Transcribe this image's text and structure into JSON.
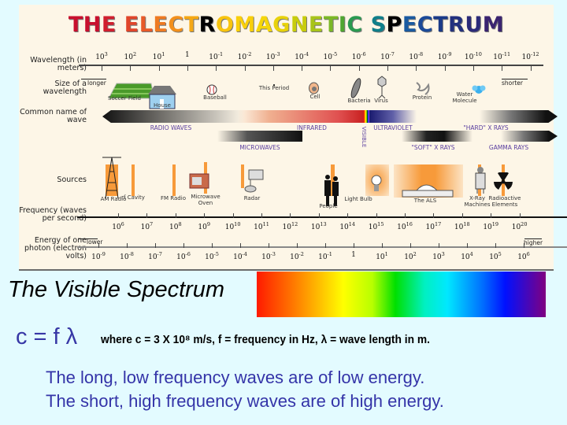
{
  "title": {
    "text": "THE ELECTROMAGNETIC SPECTRUM",
    "letter_colors": [
      "#c8102e",
      "#c8102e",
      "#d01f2e",
      " ",
      "#e0452a",
      "#e85a28",
      "#ee7a22",
      "#f2901c",
      "#f5a814",
      " ",
      "#f8c40e",
      "#f9cf0a",
      "#f5d60a",
      "#e8d20a",
      "#c8cc0c",
      "#a8c41a",
      "#7cb826",
      "#4fa630",
      "#2a9a50",
      "#138a70",
      "#0f7f8a",
      " ",
      "#1a5aa0",
      "#1b4a98",
      "#1a3a88",
      "#22307e",
      "#2b2a78",
      "#3a2470",
      "#48206c",
      "#561a66"
    ]
  },
  "labels": {
    "wavelength": "Wavelength (in meters)",
    "size": "Size of a wavelength",
    "common": "Common name of wave",
    "sources": "Sources",
    "frequency": "Frequency (waves per second)",
    "energy": "Energy of one photon (electron volts)",
    "longer": "longer",
    "shorter": "shorter",
    "lower": "lower",
    "higher": "higher"
  },
  "wavelength_ticks": [
    [
      "10",
      "3"
    ],
    [
      "10",
      "2"
    ],
    [
      "10",
      "1"
    ],
    [
      "1",
      ""
    ],
    [
      "10",
      "-1"
    ],
    [
      "10",
      "-2"
    ],
    [
      "10",
      "-3"
    ],
    [
      "10",
      "-4"
    ],
    [
      "10",
      "-5"
    ],
    [
      "10",
      "-6"
    ],
    [
      "10",
      "-7"
    ],
    [
      "10",
      "-8"
    ],
    [
      "10",
      "-9"
    ],
    [
      "10",
      "-10"
    ],
    [
      "10",
      "-11"
    ],
    [
      "10",
      "-12"
    ]
  ],
  "frequency_ticks": [
    [
      "10",
      "6"
    ],
    [
      "10",
      "7"
    ],
    [
      "10",
      "8"
    ],
    [
      "10",
      "9"
    ],
    [
      "10",
      "10"
    ],
    [
      "10",
      "11"
    ],
    [
      "10",
      "12"
    ],
    [
      "10",
      "13"
    ],
    [
      "10",
      "14"
    ],
    [
      "10",
      "15"
    ],
    [
      "10",
      "16"
    ],
    [
      "10",
      "17"
    ],
    [
      "10",
      "18"
    ],
    [
      "10",
      "19"
    ],
    [
      "10",
      "20"
    ]
  ],
  "energy_ticks": [
    [
      "10",
      "-9"
    ],
    [
      "10",
      "-8"
    ],
    [
      "10",
      "-7"
    ],
    [
      "10",
      "-6"
    ],
    [
      "10",
      "-5"
    ],
    [
      "10",
      "-4"
    ],
    [
      "10",
      "-3"
    ],
    [
      "10",
      "-2"
    ],
    [
      "10",
      "-1"
    ],
    [
      "1",
      ""
    ],
    [
      "10",
      "1"
    ],
    [
      "10",
      "2"
    ],
    [
      "10",
      "3"
    ],
    [
      "10",
      "4"
    ],
    [
      "10",
      "5"
    ],
    [
      "10",
      "6"
    ]
  ],
  "size_items": [
    "Soccer Field",
    "House",
    "Baseball",
    "This Period",
    "Cell",
    "Bacteria",
    "Virus",
    "Protein",
    "Water Molecule"
  ],
  "wave_names": {
    "radio": "RADIO WAVES",
    "microwaves": "MICROWAVES",
    "infrared": "INFRARED",
    "visible": "VISIBLE",
    "ultraviolet": "ULTRAVIOLET",
    "soft_xrays": "\"SOFT\" X RAYS",
    "hard_xrays": "\"HARD\" X RAYS",
    "gamma": "GAMMA RAYS"
  },
  "sources": [
    "AM Radio",
    "rf Cavity",
    "FM Radio",
    "Microwave Oven",
    "Radar",
    "People",
    "Light Bulb",
    "The ALS",
    "X-Ray Machines",
    "Radioactive Elements"
  ],
  "visible_title": "The Visible Spectrum",
  "formula": "c = f λ",
  "formula_note": "where c = 3 X 10⁸ m/s, f = frequency in Hz, λ = wave length in m.",
  "lines": [
    "The long, low frequency waves are of low energy.",
    "The short, high frequency waves are of high energy."
  ]
}
